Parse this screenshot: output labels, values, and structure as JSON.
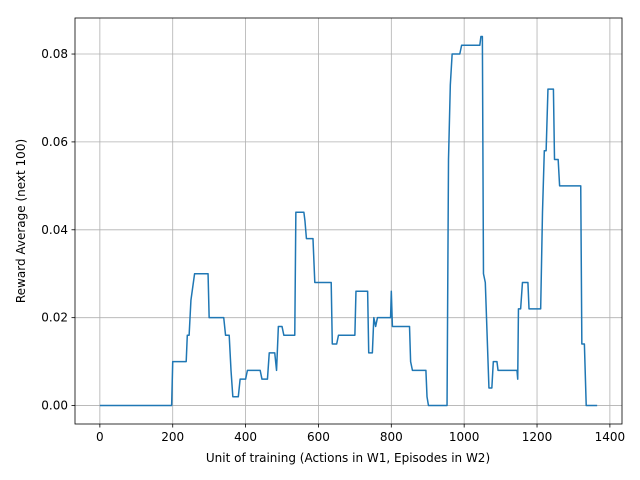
{
  "chart_data": {
    "type": "line",
    "xlabel": "Unit of training (Actions in W1, Episodes in W2)",
    "ylabel": "Reward Average (next 100)",
    "color": "#1f77b4",
    "grid": true,
    "xlim": [
      -68.25,
      1433.25
    ],
    "ylim": [
      -0.0042,
      0.0882
    ],
    "xticks": [
      0,
      200,
      400,
      600,
      800,
      1000,
      1200,
      1400
    ],
    "yticks": [
      {
        "value": 0,
        "label": "0.00"
      },
      {
        "value": 0.02,
        "label": "0.02"
      },
      {
        "value": 0.04,
        "label": "0.04"
      },
      {
        "value": 0.06,
        "label": "0.06"
      },
      {
        "value": 0.08,
        "label": "0.08"
      }
    ],
    "x": [
      0,
      197,
      200,
      237,
      240,
      245,
      250,
      260,
      297,
      300,
      340,
      345,
      355,
      360,
      365,
      380,
      385,
      400,
      405,
      440,
      445,
      460,
      465,
      480,
      485,
      490,
      500,
      505,
      535,
      538,
      560,
      563,
      567,
      585,
      590,
      635,
      638,
      650,
      655,
      700,
      703,
      735,
      738,
      748,
      752,
      757,
      762,
      798,
      800,
      803,
      850,
      853,
      858,
      895,
      898,
      902,
      953,
      957,
      962,
      967,
      988,
      993,
      1043,
      1046,
      1050,
      1053,
      1058,
      1068,
      1076,
      1080,
      1090,
      1093,
      1145,
      1147,
      1149,
      1155,
      1160,
      1175,
      1178,
      1210,
      1215,
      1220,
      1225,
      1230,
      1245,
      1248,
      1258,
      1262,
      1320,
      1323,
      1330,
      1335,
      1365
    ],
    "values": [
      0,
      0,
      0.01,
      0.01,
      0.016,
      0.016,
      0.024,
      0.03,
      0.03,
      0.02,
      0.02,
      0.016,
      0.016,
      0.008,
      0.002,
      0.002,
      0.006,
      0.006,
      0.008,
      0.008,
      0.006,
      0.006,
      0.012,
      0.012,
      0.008,
      0.018,
      0.018,
      0.016,
      0.016,
      0.044,
      0.044,
      0.042,
      0.038,
      0.038,
      0.028,
      0.028,
      0.014,
      0.014,
      0.016,
      0.016,
      0.026,
      0.026,
      0.012,
      0.012,
      0.02,
      0.018,
      0.02,
      0.02,
      0.026,
      0.018,
      0.018,
      0.01,
      0.008,
      0.008,
      0.002,
      0,
      0,
      0.056,
      0.073,
      0.08,
      0.08,
      0.082,
      0.082,
      0.084,
      0.084,
      0.03,
      0.028,
      0.004,
      0.004,
      0.01,
      0.01,
      0.008,
      0.008,
      0.006,
      0.022,
      0.022,
      0.028,
      0.028,
      0.022,
      0.022,
      0.044,
      0.058,
      0.058,
      0.072,
      0.072,
      0.056,
      0.056,
      0.05,
      0.05,
      0.014,
      0.014,
      0,
      0
    ]
  }
}
